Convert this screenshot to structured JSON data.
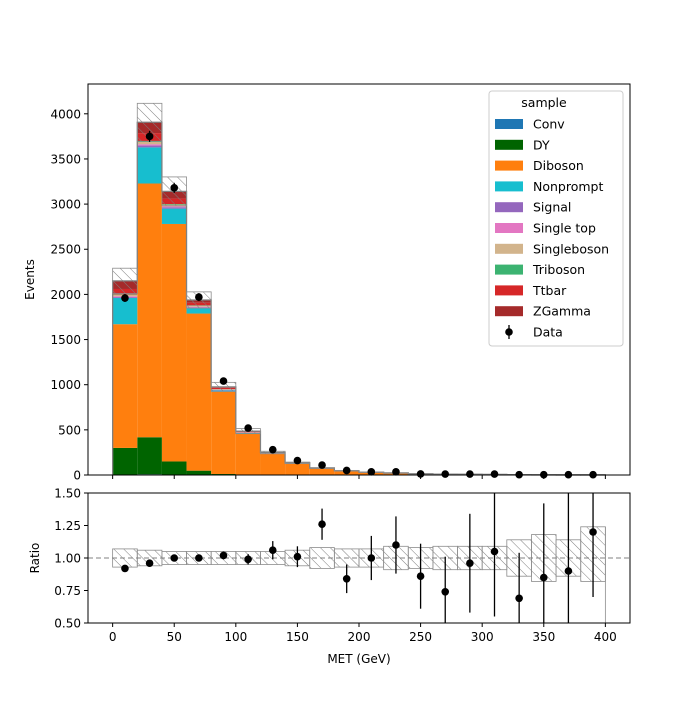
{
  "chart_data": [
    {
      "type": "bar",
      "stacked": true,
      "ylabel": "Events",
      "xlim": [
        -20,
        420
      ],
      "ylim": [
        0,
        4330
      ],
      "yticks": [
        "0",
        "500",
        "1000",
        "1500",
        "2000",
        "2500",
        "3000",
        "3500",
        "4000"
      ],
      "bin_edges": [
        0,
        20,
        40,
        60,
        80,
        100,
        120,
        140,
        160,
        180,
        200,
        220,
        240,
        260,
        280,
        300,
        320,
        340,
        360,
        380,
        400
      ],
      "legend": {
        "title": "sample",
        "placement": "top-right"
      },
      "series": [
        {
          "name": "Conv",
          "color": "#1f77b4",
          "values": [
            5,
            8,
            5,
            3,
            1,
            0,
            0,
            0,
            0,
            0,
            0,
            0,
            0,
            0,
            0,
            0,
            0,
            0,
            0,
            0
          ]
        },
        {
          "name": "DY",
          "color": "#006400",
          "values": [
            295,
            410,
            145,
            45,
            10,
            5,
            3,
            1,
            1,
            0,
            0,
            0,
            0,
            0,
            0,
            0,
            0,
            0,
            0,
            0
          ]
        },
        {
          "name": "Diboson",
          "color": "#ff7f0e",
          "values": [
            1370,
            2810,
            2630,
            1740,
            910,
            450,
            230,
            125,
            72,
            45,
            30,
            22,
            14,
            10,
            8,
            6,
            4,
            3,
            2,
            2
          ]
        },
        {
          "name": "Nonprompt",
          "color": "#17becf",
          "values": [
            290,
            400,
            170,
            60,
            15,
            10,
            4,
            3,
            2,
            1,
            1,
            1,
            0,
            0,
            0,
            0,
            0,
            0,
            0,
            0
          ]
        },
        {
          "name": "Signal",
          "color": "#9467bd",
          "values": [
            10,
            20,
            15,
            8,
            4,
            2,
            1,
            1,
            0,
            0,
            0,
            0,
            0,
            0,
            0,
            0,
            0,
            0,
            0,
            0
          ]
        },
        {
          "name": "Single top",
          "color": "#e377c2",
          "values": [
            10,
            15,
            10,
            8,
            4,
            2,
            1,
            1,
            0,
            0,
            0,
            0,
            0,
            0,
            0,
            0,
            0,
            0,
            0,
            0
          ]
        },
        {
          "name": "Singleboson",
          "color": "#d2b48c",
          "values": [
            15,
            25,
            20,
            10,
            5,
            3,
            2,
            1,
            0,
            0,
            0,
            0,
            0,
            0,
            0,
            0,
            0,
            0,
            0,
            0
          ]
        },
        {
          "name": "Triboson",
          "color": "#3cb371",
          "values": [
            5,
            8,
            6,
            4,
            2,
            1,
            1,
            0,
            0,
            0,
            0,
            0,
            0,
            0,
            0,
            0,
            0,
            0,
            0,
            0
          ]
        },
        {
          "name": "Ttbar",
          "color": "#d62728",
          "values": [
            60,
            90,
            60,
            30,
            15,
            8,
            4,
            2,
            1,
            1,
            0,
            0,
            0,
            0,
            0,
            0,
            0,
            0,
            0,
            0
          ]
        },
        {
          "name": "ZGamma",
          "color": "#a52a2a",
          "values": [
            90,
            120,
            80,
            30,
            10,
            5,
            3,
            1,
            1,
            0,
            0,
            0,
            0,
            0,
            0,
            0,
            0,
            0,
            0,
            0
          ]
        }
      ],
      "uncertainty_band": [
        140,
        210,
        160,
        90,
        50,
        28,
        14,
        8,
        5,
        4,
        3,
        2,
        2,
        1.5,
        1.2,
        1,
        0.8,
        0.6,
        0.5,
        0.4
      ],
      "data_points": {
        "name": "Data",
        "x": [
          10,
          30,
          50,
          70,
          90,
          110,
          130,
          150,
          170,
          190,
          210,
          230,
          250,
          270,
          290,
          310,
          330,
          350,
          370,
          390
        ],
        "y": [
          1960,
          3750,
          3180,
          1970,
          1040,
          520,
          280,
          160,
          110,
          50,
          35,
          35,
          12,
          10,
          10,
          10,
          4,
          4,
          3,
          3
        ],
        "yerr": [
          44,
          61,
          56,
          44,
          32,
          23,
          17,
          13,
          10,
          7,
          6,
          6,
          3,
          3,
          3,
          3,
          2,
          2,
          2,
          2
        ]
      }
    },
    {
      "type": "scatter",
      "xlabel": "MET (GeV)",
      "ylabel": "Ratio",
      "xlim": [
        -20,
        420
      ],
      "ylim": [
        0.5,
        1.5
      ],
      "xticks": [
        "0",
        "50",
        "100",
        "150",
        "200",
        "250",
        "300",
        "350",
        "400"
      ],
      "yticks": [
        "0.50",
        "0.75",
        "1.00",
        "1.25",
        "1.50"
      ],
      "reference_line": 1.0,
      "x": [
        10,
        30,
        50,
        70,
        90,
        110,
        130,
        150,
        170,
        190,
        210,
        230,
        250,
        270,
        290,
        310,
        330,
        350,
        370,
        390
      ],
      "y": [
        0.92,
        0.96,
        1.0,
        1.0,
        1.02,
        0.99,
        1.06,
        1.01,
        1.26,
        0.84,
        1.0,
        1.1,
        0.86,
        0.74,
        0.96,
        1.05,
        0.69,
        0.85,
        0.9,
        1.2
      ],
      "yerr": [
        0.02,
        0.02,
        0.02,
        0.02,
        0.03,
        0.04,
        0.07,
        0.08,
        0.12,
        0.11,
        0.17,
        0.22,
        0.25,
        0.27,
        0.38,
        0.5,
        0.35,
        0.57,
        0.65,
        0.5
      ],
      "uncertainty_band": [
        [
          0.93,
          1.07
        ],
        [
          0.94,
          1.06
        ],
        [
          0.95,
          1.05
        ],
        [
          0.95,
          1.05
        ],
        [
          0.95,
          1.05
        ],
        [
          0.95,
          1.05
        ],
        [
          0.95,
          1.05
        ],
        [
          0.94,
          1.06
        ],
        [
          0.92,
          1.08
        ],
        [
          0.93,
          1.07
        ],
        [
          0.93,
          1.07
        ],
        [
          0.91,
          1.09
        ],
        [
          0.92,
          1.08
        ],
        [
          0.91,
          1.09
        ],
        [
          0.91,
          1.09
        ],
        [
          0.91,
          1.09
        ],
        [
          0.86,
          1.14
        ],
        [
          0.82,
          1.18
        ],
        [
          0.86,
          1.14
        ],
        [
          0.82,
          1.24
        ]
      ]
    }
  ]
}
